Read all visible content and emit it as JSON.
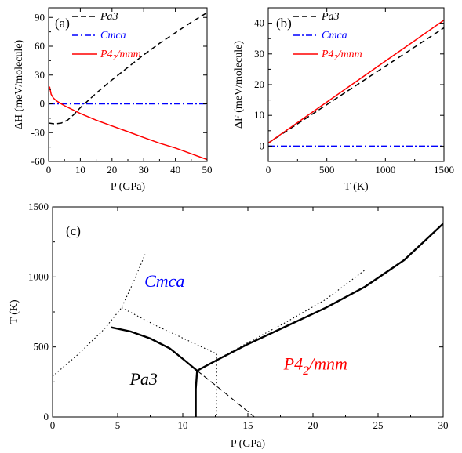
{
  "chart_data": [
    {
      "type": "line",
      "panel_label": "(a)",
      "xlabel": "P (GPa)",
      "ylabel": "ΔH (meV/molecule)",
      "xlim": [
        0,
        50
      ],
      "ylim": [
        -60,
        100
      ],
      "x_ticks": [
        "0",
        "10",
        "20",
        "30",
        "40",
        "50"
      ],
      "y_ticks": [
        "-60",
        "-30",
        "0",
        "30",
        "60",
        "90"
      ],
      "legend_position": "top-left",
      "series": [
        {
          "name": "Pa3",
          "color": "#000000",
          "dash": "dashed",
          "points": [
            [
              0,
              -20
            ],
            [
              2,
              -21
            ],
            [
              4,
              -20
            ],
            [
              6,
              -17
            ],
            [
              8,
              -11
            ],
            [
              10,
              -4
            ],
            [
              12,
              2
            ],
            [
              15,
              11
            ],
            [
              20,
              25
            ],
            [
              25,
              38
            ],
            [
              30,
              51
            ],
            [
              35,
              63
            ],
            [
              40,
              74
            ],
            [
              45,
              85
            ],
            [
              50,
              95
            ]
          ]
        },
        {
          "name": "Cmca",
          "color": "#0000ff",
          "dash": "dashdot",
          "points": [
            [
              0,
              0
            ],
            [
              50,
              0
            ]
          ]
        },
        {
          "name": "P4_2/mnm",
          "color": "#ff0000",
          "dash": "solid",
          "points": [
            [
              0.3,
              18
            ],
            [
              0.8,
              10
            ],
            [
              1.5,
              6
            ],
            [
              2.5,
              3
            ],
            [
              3.5,
              1
            ],
            [
              5,
              -2
            ],
            [
              10,
              -10
            ],
            [
              15,
              -17
            ],
            [
              20,
              -23
            ],
            [
              25,
              -29
            ],
            [
              30,
              -35
            ],
            [
              35,
              -41
            ],
            [
              40,
              -46
            ],
            [
              45,
              -52
            ],
            [
              50,
              -58
            ]
          ]
        }
      ]
    },
    {
      "type": "line",
      "panel_label": "(b)",
      "xlabel": "T (K)",
      "ylabel": "ΔF (meV/molecule)",
      "xlim": [
        0,
        1500
      ],
      "ylim": [
        -5,
        45
      ],
      "x_ticks": [
        "0",
        "500",
        "1000",
        "1500"
      ],
      "y_ticks": [
        "0",
        "10",
        "20",
        "30",
        "40"
      ],
      "legend_position": "top-left",
      "series": [
        {
          "name": "Pa3",
          "color": "#000000",
          "dash": "dashed",
          "points": [
            [
              0,
              1
            ],
            [
              1500,
              38.5
            ]
          ]
        },
        {
          "name": "Cmca",
          "color": "#0000ff",
          "dash": "dashdot",
          "points": [
            [
              0,
              0
            ],
            [
              1500,
              0
            ]
          ]
        },
        {
          "name": "P4_2/mnm",
          "color": "#ff0000",
          "dash": "solid",
          "points": [
            [
              0,
              1
            ],
            [
              1500,
              41
            ]
          ]
        }
      ]
    },
    {
      "type": "line",
      "panel_label": "(c)",
      "xlabel": "P (GPa)",
      "ylabel": "T (K)",
      "xlim": [
        0,
        30
      ],
      "ylim": [
        0,
        1500
      ],
      "x_ticks": [
        "0",
        "5",
        "10",
        "15",
        "20",
        "25",
        "30"
      ],
      "y_ticks": [
        "0",
        "500",
        "1000",
        "1500"
      ],
      "phase_labels": [
        {
          "text": "Cmca",
          "color": "#0000ff",
          "x": 8.6,
          "y": 930
        },
        {
          "text": "Pa3",
          "color": "#000000",
          "x": 7.0,
          "y": 230
        },
        {
          "text": "P4_2/mnm",
          "color": "#ff0000",
          "x": 20.2,
          "y": 340
        }
      ],
      "series": [
        {
          "color": "#000000",
          "style": "thick",
          "points": [
            [
              4.5,
              640
            ],
            [
              6,
              610
            ],
            [
              7.5,
              560
            ],
            [
              9,
              490
            ],
            [
              10.2,
              400
            ],
            [
              11.1,
              330
            ]
          ]
        },
        {
          "color": "#000000",
          "style": "thick",
          "points": [
            [
              11.1,
              330
            ],
            [
              12.5,
              400
            ],
            [
              15,
              520
            ],
            [
              18,
              650
            ],
            [
              21,
              780
            ],
            [
              24,
              930
            ],
            [
              27,
              1120
            ],
            [
              30,
              1380
            ]
          ]
        },
        {
          "color": "#000000",
          "style": "thick",
          "points": [
            [
              11.1,
              330
            ],
            [
              11,
              200
            ],
            [
              11,
              0
            ]
          ]
        },
        {
          "color": "#000000",
          "style": "dotted",
          "points": [
            [
              0,
              290
            ],
            [
              2,
              450
            ],
            [
              4,
              630
            ],
            [
              5.3,
              780
            ],
            [
              6.2,
              960
            ],
            [
              7.1,
              1160
            ]
          ]
        },
        {
          "color": "#000000",
          "style": "dotted",
          "points": [
            [
              5.3,
              780
            ],
            [
              8,
              650
            ],
            [
              11,
              520
            ],
            [
              12.6,
              450
            ]
          ]
        },
        {
          "color": "#000000",
          "style": "dotted",
          "points": [
            [
              12.6,
              450
            ],
            [
              12.6,
              0
            ]
          ]
        },
        {
          "color": "#000000",
          "style": "dashed",
          "points": [
            [
              11.1,
              330
            ],
            [
              13,
              190
            ],
            [
              15.5,
              0
            ]
          ]
        },
        {
          "color": "#000000",
          "style": "dotted",
          "points": [
            [
              11.1,
              330
            ],
            [
              14,
              480
            ],
            [
              18,
              680
            ],
            [
              21,
              840
            ],
            [
              24,
              1050
            ]
          ]
        }
      ]
    }
  ]
}
